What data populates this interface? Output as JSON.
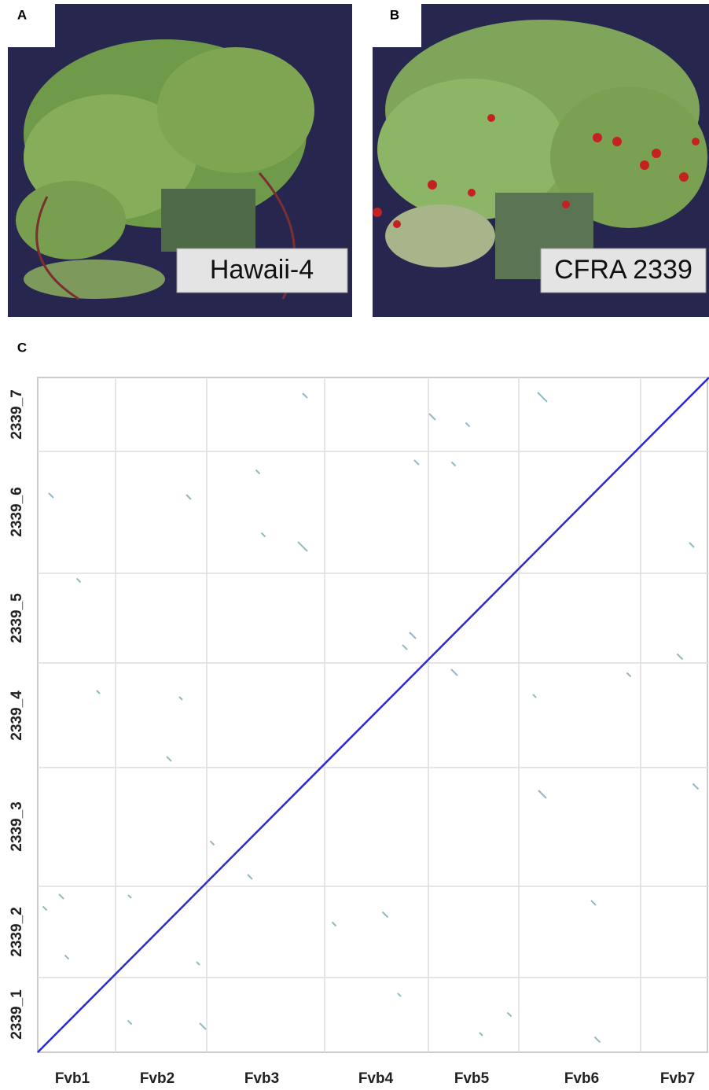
{
  "panels": [
    {
      "label": "A",
      "caption": "Hawaii-4"
    },
    {
      "label": "B",
      "caption": "CFRA 2339"
    }
  ],
  "dotplot": {
    "label": "C",
    "x_labels": [
      "Fvb1",
      "Fvb2",
      "Fvb3",
      "Fvb4",
      "Fvb5",
      "Fvb6",
      "Fvb7"
    ],
    "y_labels": [
      "2339_7",
      "2339_6",
      "2339_5",
      "2339_4",
      "2339_3",
      "2339_2",
      "2339_1"
    ]
  }
}
